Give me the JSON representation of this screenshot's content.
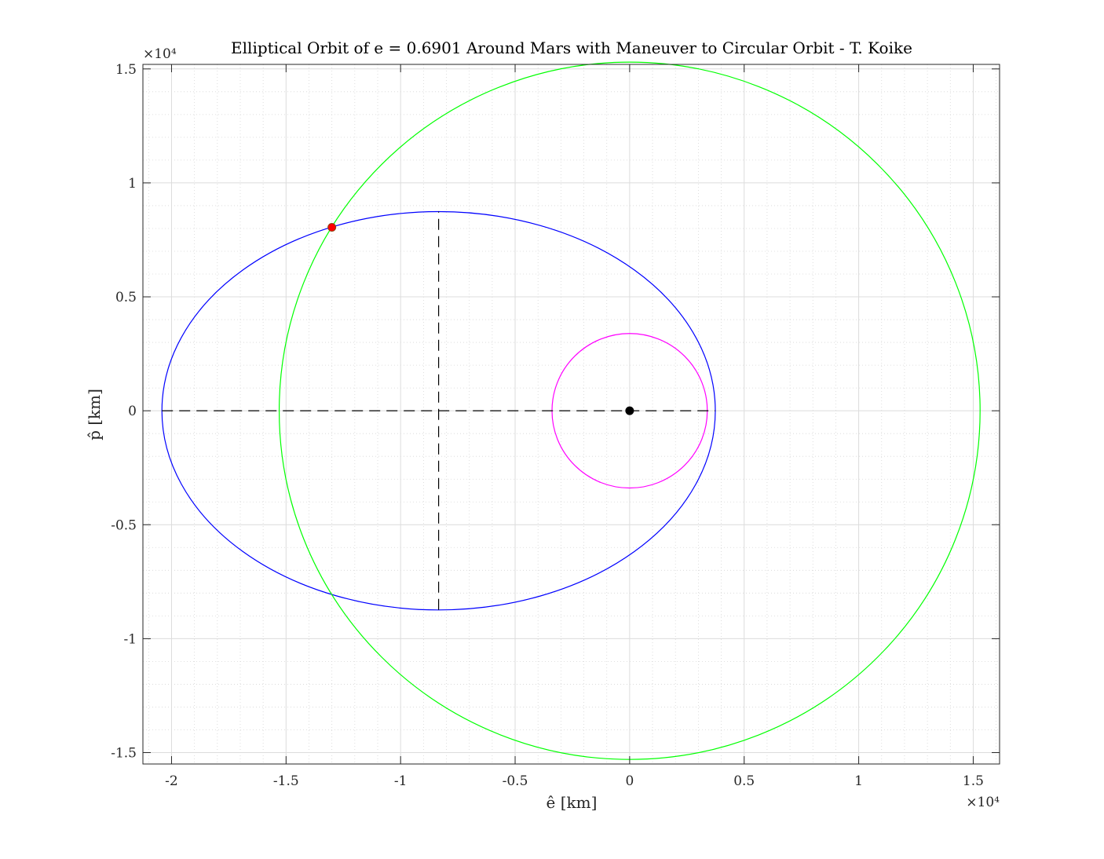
{
  "chart_data": {
    "type": "line",
    "title": "Elliptical Orbit of e = 0.6901 Around Mars with Maneuver to Circular Orbit - T. Koike",
    "xlabel": "ê [km]",
    "ylabel": "p̂ [km]",
    "x_exponent_label": "×10⁴",
    "y_exponent_label": "×10⁴",
    "xlim": [
      -21250,
      16150
    ],
    "ylim": [
      -15500,
      15200
    ],
    "x_ticks": [
      -20000,
      -15000,
      -10000,
      -5000,
      0,
      5000,
      10000,
      15000
    ],
    "x_tick_labels": [
      "-2",
      "-1.5",
      "-1",
      "-0.5",
      "0",
      "0.5",
      "1",
      "1.5"
    ],
    "y_ticks": [
      -15000,
      -10000,
      -5000,
      0,
      5000,
      10000,
      15000
    ],
    "y_tick_labels": [
      "-1.5",
      "-1",
      "-0.5",
      "0",
      "0.5",
      "1",
      "1.5"
    ],
    "grid": true,
    "minor_grid": true,
    "series": [
      {
        "kind": "ellipse",
        "cx": -8340,
        "cy": 0,
        "a": 12080,
        "b": 8740,
        "color": "#0000ff"
      },
      {
        "kind": "circle",
        "cx": 0,
        "cy": 0,
        "r": 15300,
        "color": "#00ff00"
      },
      {
        "kind": "circle",
        "cx": 0,
        "cy": 0,
        "r": 3390,
        "color": "#ff00ff"
      },
      {
        "kind": "dashed-line",
        "x": [
          -20420,
          3740
        ],
        "y": [
          0,
          0
        ],
        "color": "#000000"
      },
      {
        "kind": "dashed-line",
        "x": [
          -8340,
          -8340
        ],
        "y": [
          -8740,
          8740
        ],
        "color": "#000000"
      },
      {
        "kind": "point",
        "x": 0,
        "y": 0,
        "color": "#000000"
      },
      {
        "kind": "point",
        "x": -13000,
        "y": 8050,
        "color": "#ff0000"
      }
    ]
  }
}
